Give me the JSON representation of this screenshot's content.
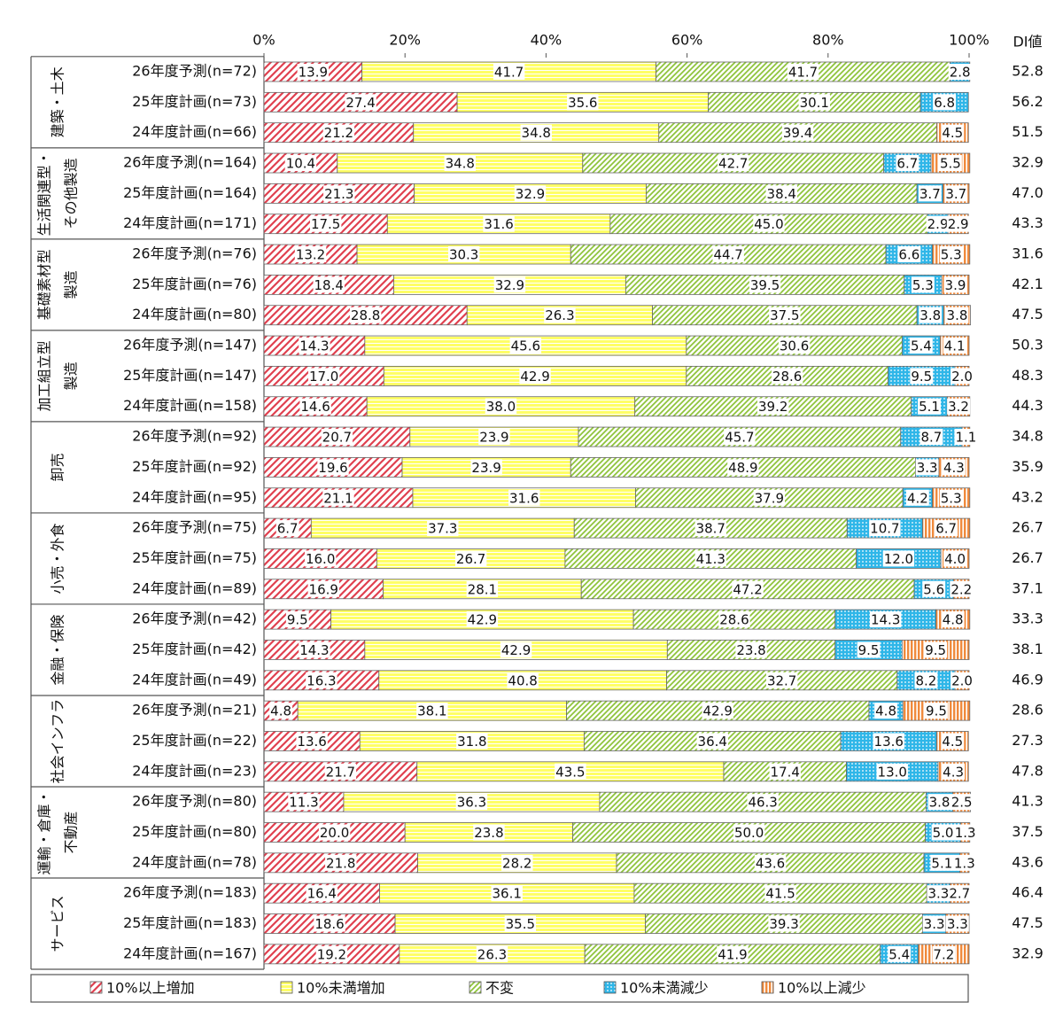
{
  "chart_data": {
    "type": "stacked-bar-horizontal",
    "xlim": [
      0,
      100
    ],
    "xticks": [
      {
        "value": 0,
        "label": "0%"
      },
      {
        "value": 20,
        "label": "20%"
      },
      {
        "value": 40,
        "label": "40%"
      },
      {
        "value": 60,
        "label": "60%"
      },
      {
        "value": 80,
        "label": "80%"
      },
      {
        "value": 100,
        "label": "100%"
      }
    ],
    "groups": [
      {
        "label": [
          "建築・土木"
        ]
      },
      {
        "label": [
          "生活関連型・",
          "その他製造"
        ]
      },
      {
        "label": [
          "基礎素材型",
          "製造"
        ]
      },
      {
        "label": [
          "加工組立型",
          "製造"
        ]
      },
      {
        "label": [
          "卸売"
        ]
      },
      {
        "label": [
          "小売・外食"
        ]
      },
      {
        "label": [
          "金融・保険"
        ]
      },
      {
        "label": [
          "社会インフラ"
        ]
      },
      {
        "label": [
          "運輸・倉庫・",
          "不動産"
        ]
      },
      {
        "label": [
          "サービス"
        ]
      }
    ],
    "categories": [
      "26年度予測(n=72)",
      "25年度計画(n=73)",
      "24年度計画(n=66)",
      "26年度予測(n=164)",
      "25年度計画(n=164)",
      "24年度計画(n=171)",
      "26年度予測(n=76)",
      "25年度計画(n=76)",
      "24年度計画(n=80)",
      "26年度予測(n=147)",
      "25年度計画(n=147)",
      "24年度計画(n=158)",
      "26年度予測(n=92)",
      "25年度計画(n=92)",
      "24年度計画(n=95)",
      "26年度予測(n=75)",
      "25年度計画(n=75)",
      "24年度計画(n=89)",
      "26年度予測(n=42)",
      "25年度計画(n=42)",
      "24年度計画(n=49)",
      "26年度予測(n=21)",
      "25年度計画(n=22)",
      "24年度計画(n=23)",
      "26年度予測(n=80)",
      "25年度計画(n=80)",
      "24年度計画(n=78)",
      "26年度予測(n=183)",
      "25年度計画(n=183)",
      "24年度計画(n=167)"
    ],
    "series": [
      {
        "name": "10%以上増加",
        "color": "#e0404f",
        "values": [
          13.9,
          27.4,
          21.2,
          10.4,
          21.3,
          17.5,
          13.2,
          18.4,
          28.8,
          14.3,
          17.0,
          14.6,
          20.7,
          19.6,
          21.1,
          6.7,
          16.0,
          16.9,
          9.5,
          14.3,
          16.3,
          4.8,
          13.6,
          21.7,
          11.3,
          20.0,
          21.8,
          16.4,
          18.6,
          19.2
        ],
        "value_labels": [
          "13.9",
          "27.4",
          "21.2",
          "10.4",
          "21.3",
          "17.5",
          "13.2",
          "18.4",
          "28.8",
          "14.3",
          "17.0",
          "14.6",
          "20.7",
          "19.6",
          "21.1",
          "6.7",
          "16.0",
          "16.9",
          "9.5",
          "14.3",
          "16.3",
          "4.8",
          "13.6",
          "21.7",
          "11.3",
          "20.0",
          "21.8",
          "16.4",
          "18.6",
          "19.2"
        ]
      },
      {
        "name": "10%未満増加",
        "color": "#ffff66",
        "values": [
          41.7,
          35.6,
          34.8,
          34.8,
          32.9,
          31.6,
          30.3,
          32.9,
          26.3,
          45.6,
          42.9,
          38.0,
          23.9,
          23.9,
          31.6,
          37.3,
          26.7,
          28.1,
          42.9,
          42.9,
          40.8,
          38.1,
          31.8,
          43.5,
          36.3,
          23.8,
          28.2,
          36.1,
          35.5,
          26.3
        ],
        "value_labels": [
          "41.7",
          "35.6",
          "34.8",
          "34.8",
          "32.9",
          "31.6",
          "30.3",
          "32.9",
          "26.3",
          "45.6",
          "42.9",
          "38.0",
          "23.9",
          "23.9",
          "31.6",
          "37.3",
          "26.7",
          "28.1",
          "42.9",
          "42.9",
          "40.8",
          "38.1",
          "31.8",
          "43.5",
          "36.3",
          "23.8",
          "28.2",
          "36.1",
          "35.5",
          "26.3"
        ]
      },
      {
        "name": "不変",
        "color": "#8fc43c",
        "values": [
          41.7,
          30.1,
          39.4,
          42.7,
          38.4,
          45.0,
          44.7,
          39.5,
          37.5,
          30.6,
          28.6,
          39.2,
          45.7,
          48.9,
          37.9,
          38.7,
          41.3,
          47.2,
          28.6,
          23.8,
          32.7,
          42.9,
          36.4,
          17.4,
          46.3,
          50.0,
          43.6,
          41.5,
          39.3,
          41.9
        ],
        "value_labels": [
          "41.7",
          "30.1",
          "39.4",
          "42.7",
          "38.4",
          "45.0",
          "44.7",
          "39.5",
          "37.5",
          "30.6",
          "28.6",
          "39.2",
          "45.7",
          "48.9",
          "37.9",
          "38.7",
          "41.3",
          "47.2",
          "28.6",
          "23.8",
          "32.7",
          "42.9",
          "36.4",
          "17.4",
          "46.3",
          "50.0",
          "43.6",
          "41.5",
          "39.3",
          "41.9"
        ]
      },
      {
        "name": "10%未満減少",
        "color": "#2fb6e8",
        "values": [
          2.8,
          6.8,
          0,
          6.7,
          3.7,
          2.9,
          6.6,
          5.3,
          3.8,
          5.4,
          9.5,
          5.1,
          8.7,
          3.3,
          4.2,
          10.7,
          12.0,
          5.6,
          14.3,
          9.5,
          8.2,
          4.8,
          13.6,
          13.0,
          3.8,
          5.0,
          5.1,
          3.3,
          3.3,
          5.4
        ],
        "value_labels": [
          "2.8",
          "6.8",
          null,
          "6.7",
          "3.7",
          "2.9",
          "6.6",
          "5.3",
          "3.8",
          "5.4",
          "9.5",
          "5.1",
          "8.7",
          "3.3",
          "4.2",
          "10.7",
          "12.0",
          "5.6",
          "14.3",
          "9.5",
          "8.2",
          "4.8",
          "13.6",
          "13.0",
          "3.8",
          "5.0",
          "5.1",
          "3.3",
          "3.3",
          "5.4"
        ]
      },
      {
        "name": "10%以上減少",
        "color": "#f08a3c",
        "values": [
          0,
          0,
          4.5,
          5.5,
          3.7,
          2.9,
          5.3,
          3.9,
          3.8,
          4.1,
          2.0,
          3.2,
          1.1,
          4.3,
          5.3,
          6.7,
          4.0,
          2.2,
          4.8,
          9.5,
          2.0,
          9.5,
          4.5,
          4.3,
          2.5,
          1.3,
          1.3,
          2.7,
          3.3,
          7.2
        ],
        "value_labels": [
          null,
          null,
          "4.5",
          "5.5",
          "3.7",
          "2.9",
          "5.3",
          "3.9",
          "3.8",
          "4.1",
          "2.0",
          "3.2",
          "1.1",
          "4.3",
          "5.3",
          "6.7",
          "4.0",
          "2.2",
          "4.8",
          "9.5",
          "2.0",
          "9.5",
          "4.5",
          "4.3",
          "2.5",
          "1.3",
          "1.3",
          "2.7",
          "3.3",
          "7.2"
        ]
      }
    ],
    "di": {
      "title": "DI値",
      "values": [
        52.8,
        56.2,
        51.5,
        32.9,
        47.0,
        43.3,
        31.6,
        42.1,
        47.5,
        50.3,
        48.3,
        44.3,
        34.8,
        35.9,
        43.2,
        26.7,
        26.7,
        37.1,
        33.3,
        38.1,
        46.9,
        28.6,
        27.3,
        47.8,
        41.3,
        37.5,
        43.6,
        46.4,
        47.5,
        32.9
      ],
      "value_labels": [
        "52.8",
        "56.2",
        "51.5",
        "32.9",
        "47.0",
        "43.3",
        "31.6",
        "42.1",
        "47.5",
        "50.3",
        "48.3",
        "44.3",
        "34.8",
        "35.9",
        "43.2",
        "26.7",
        "26.7",
        "37.1",
        "33.3",
        "38.1",
        "46.9",
        "28.6",
        "27.3",
        "47.8",
        "41.3",
        "37.5",
        "43.6",
        "46.4",
        "47.5",
        "32.9"
      ]
    },
    "legend": "bottom"
  }
}
